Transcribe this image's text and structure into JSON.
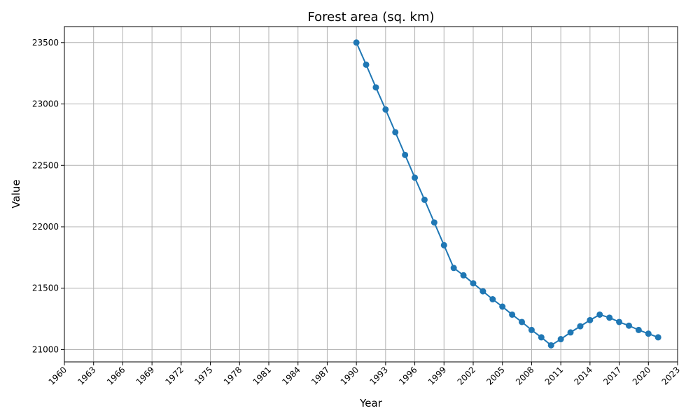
{
  "chart_data": {
    "type": "line",
    "title": "Forest area (sq. km)",
    "xlabel": "Year",
    "ylabel": "Value",
    "xlim": [
      1960,
      2023
    ],
    "ylim": [
      20900,
      23630
    ],
    "xticks": [
      1960,
      1963,
      1966,
      1969,
      1972,
      1975,
      1978,
      1981,
      1984,
      1987,
      1990,
      1993,
      1996,
      1999,
      2002,
      2005,
      2008,
      2011,
      2014,
      2017,
      2020,
      2023
    ],
    "yticks": [
      21000,
      21500,
      22000,
      22500,
      23000,
      23500
    ],
    "grid": true,
    "color": "#1f77b4",
    "series": [
      {
        "x": [
          1990,
          1991,
          1992,
          1993,
          1994,
          1995,
          1996,
          1997,
          1998,
          1999,
          2000,
          2001,
          2002,
          2003,
          2004,
          2005,
          2006,
          2007,
          2008,
          2009,
          2010,
          2011,
          2012,
          2013,
          2014,
          2015,
          2016,
          2017,
          2018,
          2019,
          2020,
          2021
        ],
        "values": [
          23500,
          23320,
          23135,
          22955,
          22770,
          22585,
          22400,
          22220,
          22035,
          21850,
          21665,
          21605,
          21540,
          21475,
          21410,
          21350,
          21285,
          21225,
          21160,
          21100,
          21035,
          21085,
          21140,
          21190,
          21240,
          21285,
          21260,
          21225,
          21195,
          21160,
          21130,
          21100
        ]
      }
    ]
  }
}
